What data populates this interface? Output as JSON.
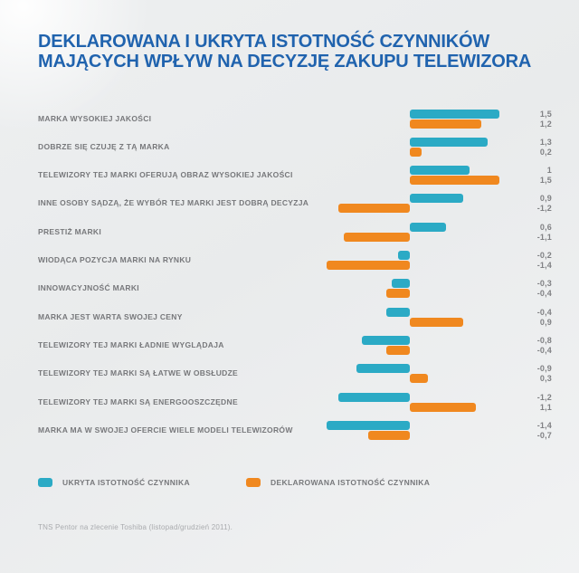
{
  "title": {
    "line1": "DEKLAROWANA I UKRYTA ISTOTNOŚĆ CZYNNIKÓW",
    "line2": "MAJĄCYCH WPŁYW NA DECYZJĘ ZAKUPU TELEWIZORA"
  },
  "chart_data": {
    "type": "bar",
    "orientation": "horizontal",
    "xlim": [
      -1.5,
      1.5
    ],
    "grid": false,
    "legend_position": "bottom",
    "series_names": [
      "UKRYTA ISTOTNOŚĆ CZYNNIKA",
      "DEKLAROWANA ISTOTNOŚĆ CZYNNIKA"
    ],
    "colors": {
      "ukryta": "#2BAAC5",
      "deklarowana": "#F0881F"
    },
    "rows": [
      {
        "label": "MARKA WYSOKIEJ JAKOŚCI",
        "ukryta": 1.5,
        "deklarowana": 1.2,
        "ukryta_label": "1,5",
        "deklarowana_label": "1,2"
      },
      {
        "label": "DOBRZE SIĘ CZUJĘ Z TĄ MARKA",
        "ukryta": 1.3,
        "deklarowana": 0.2,
        "ukryta_label": "1,3",
        "deklarowana_label": "0,2"
      },
      {
        "label": "TELEWIZORY TEJ MARKI OFERUJĄ OBRAZ WYSOKIEJ JAKOŚCI",
        "ukryta": 1.0,
        "deklarowana": 1.5,
        "ukryta_label": "1",
        "deklarowana_label": "1,5"
      },
      {
        "label": "INNE OSOBY SĄDZĄ, ŻE WYBÓR TEJ MARKI JEST DOBRĄ DECYZJA",
        "ukryta": 0.9,
        "deklarowana": -1.2,
        "ukryta_label": "0,9",
        "deklarowana_label": "-1,2"
      },
      {
        "label": "PRESTIŻ MARKI",
        "ukryta": 0.6,
        "deklarowana": -1.1,
        "ukryta_label": "0,6",
        "deklarowana_label": "-1,1"
      },
      {
        "label": "WIODĄCA POZYCJA MARKI NA RYNKU",
        "ukryta": -0.2,
        "deklarowana": -1.4,
        "ukryta_label": "-0,2",
        "deklarowana_label": "-1,4"
      },
      {
        "label": "INNOWACYJNOŚĆ MARKI",
        "ukryta": -0.3,
        "deklarowana": -0.4,
        "ukryta_label": "-0,3",
        "deklarowana_label": "-0,4"
      },
      {
        "label": "MARKA JEST WARTA SWOJEJ CENY",
        "ukryta": -0.4,
        "deklarowana": 0.9,
        "ukryta_label": "-0,4",
        "deklarowana_label": "0,9"
      },
      {
        "label": "TELEWIZORY TEJ MARKI ŁADNIE WYGLĄDAJA",
        "ukryta": -0.8,
        "deklarowana": -0.4,
        "ukryta_label": "-0,8",
        "deklarowana_label": "-0,4"
      },
      {
        "label": "TELEWIZORY TEJ MARKI SĄ ŁATWE W OBSŁUDZE",
        "ukryta": -0.9,
        "deklarowana": 0.3,
        "ukryta_label": "-0,9",
        "deklarowana_label": "0,3"
      },
      {
        "label": "TELEWIZORY TEJ MARKI SĄ ENERGOOSZCZĘDNE",
        "ukryta": -1.2,
        "deklarowana": 1.1,
        "ukryta_label": "-1,2",
        "deklarowana_label": "1,1"
      },
      {
        "label": "MARKA MA W SWOJEJ OFERCIE WIELE MODELI TELEWIZORÓW",
        "ukryta": -1.4,
        "deklarowana": -0.7,
        "ukryta_label": "-1,4",
        "deklarowana_label": "-0,7"
      }
    ]
  },
  "legend": {
    "items": [
      {
        "label": "UKRYTA ISTOTNOŚĆ CZYNNIKA",
        "color": "#2BAAC5"
      },
      {
        "label": "DEKLAROWANA ISTOTNOŚĆ CZYNNIKA",
        "color": "#F0881F"
      }
    ]
  },
  "footer": {
    "source": "TNS Pentor na zlecenie Toshiba (listopad/grudzień 2011)."
  }
}
